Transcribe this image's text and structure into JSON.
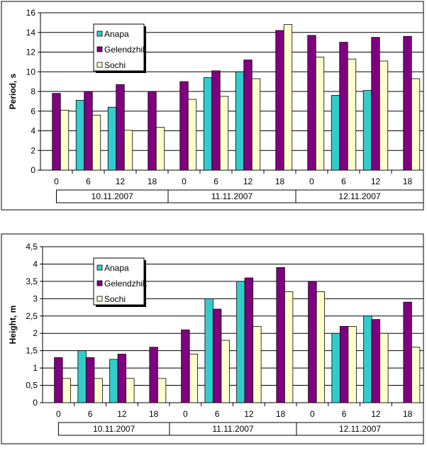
{
  "chart_data": [
    {
      "type": "bar",
      "ylabel": "Period, s",
      "ylim": [
        0,
        16
      ],
      "yticks": [
        "0",
        "2",
        "4",
        "6",
        "8",
        "10",
        "12",
        "14",
        "16"
      ],
      "categories": [
        "0",
        "6",
        "12",
        "18",
        "0",
        "6",
        "12",
        "18",
        "0",
        "6",
        "12",
        "18"
      ],
      "groups": [
        "10.11.2007",
        "11.11.2007",
        "12.11.2007"
      ],
      "legend_position": "top-left",
      "grid": true,
      "series": [
        {
          "name": "Anapa",
          "color": "#33CCCC",
          "values": [
            null,
            7.1,
            6.4,
            null,
            null,
            9.4,
            10,
            null,
            null,
            7.6,
            8.1,
            null
          ]
        },
        {
          "name": "Gelendzhik",
          "color": "#800080",
          "values": [
            7.8,
            8,
            8.7,
            8,
            9,
            10.1,
            11.2,
            14.2,
            13.7,
            13,
            13.5,
            13.6
          ]
        },
        {
          "name": "Sochi",
          "color": "#FFFFCC",
          "values": [
            6.1,
            5.6,
            4.05,
            4.35,
            7.2,
            7.5,
            9.3,
            14.8,
            11.5,
            11.3,
            11.1,
            9.3
          ]
        }
      ]
    },
    {
      "type": "bar",
      "ylabel": "Height, m",
      "ylim": [
        0,
        4.5
      ],
      "yticks": [
        "0",
        "0,5",
        "1",
        "1,5",
        "2",
        "2,5",
        "3",
        "3,5",
        "4",
        "4,5"
      ],
      "categories": [
        "0",
        "6",
        "12",
        "18",
        "0",
        "6",
        "12",
        "18",
        "0",
        "6",
        "12",
        "18"
      ],
      "groups": [
        "10.11.2007",
        "11.11.2007",
        "12.11.2007"
      ],
      "legend_position": "top-left",
      "grid": true,
      "series": [
        {
          "name": "Anapa",
          "color": "#33CCCC",
          "values": [
            null,
            1.5,
            1.25,
            null,
            null,
            3,
            3.5,
            null,
            null,
            2,
            2.5,
            null
          ]
        },
        {
          "name": "Gelendzhik",
          "color": "#800080",
          "values": [
            1.3,
            1.3,
            1.4,
            1.6,
            2.1,
            2.7,
            3.6,
            3.9,
            3.5,
            2.2,
            2.4,
            2.9
          ]
        },
        {
          "name": "Sochi",
          "color": "#FFFFCC",
          "values": [
            0.7,
            0.7,
            0.7,
            0.7,
            1.4,
            1.8,
            2.2,
            3.2,
            3.2,
            2.2,
            2.0,
            1.6
          ]
        }
      ]
    }
  ]
}
